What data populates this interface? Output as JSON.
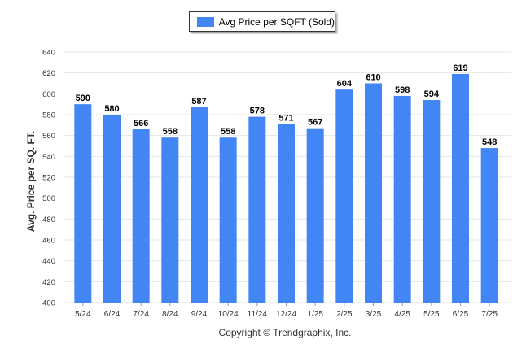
{
  "chart_data": {
    "type": "bar",
    "categories": [
      "5/24",
      "6/24",
      "7/24",
      "8/24",
      "9/24",
      "10/24",
      "11/24",
      "12/24",
      "1/25",
      "2/25",
      "3/25",
      "4/25",
      "5/25",
      "6/25",
      "7/25"
    ],
    "series": [
      {
        "name": "Avg Price per SQFT (Sold)",
        "values": [
          590,
          580,
          566,
          558,
          587,
          558,
          578,
          571,
          567,
          604,
          610,
          598,
          594,
          619,
          548
        ]
      }
    ],
    "ylabel": "Avg. Price per SQ. FT.",
    "xlabel": "",
    "ylim": [
      400,
      640
    ],
    "yticks": [
      400,
      420,
      440,
      460,
      480,
      500,
      520,
      540,
      560,
      580,
      600,
      620,
      640
    ],
    "grid": true,
    "legend_position": "top-center",
    "bar_color": "#4285f4",
    "data_labels": true
  },
  "footer": {
    "copyright": "Copyright © Trendgraphix, Inc."
  }
}
